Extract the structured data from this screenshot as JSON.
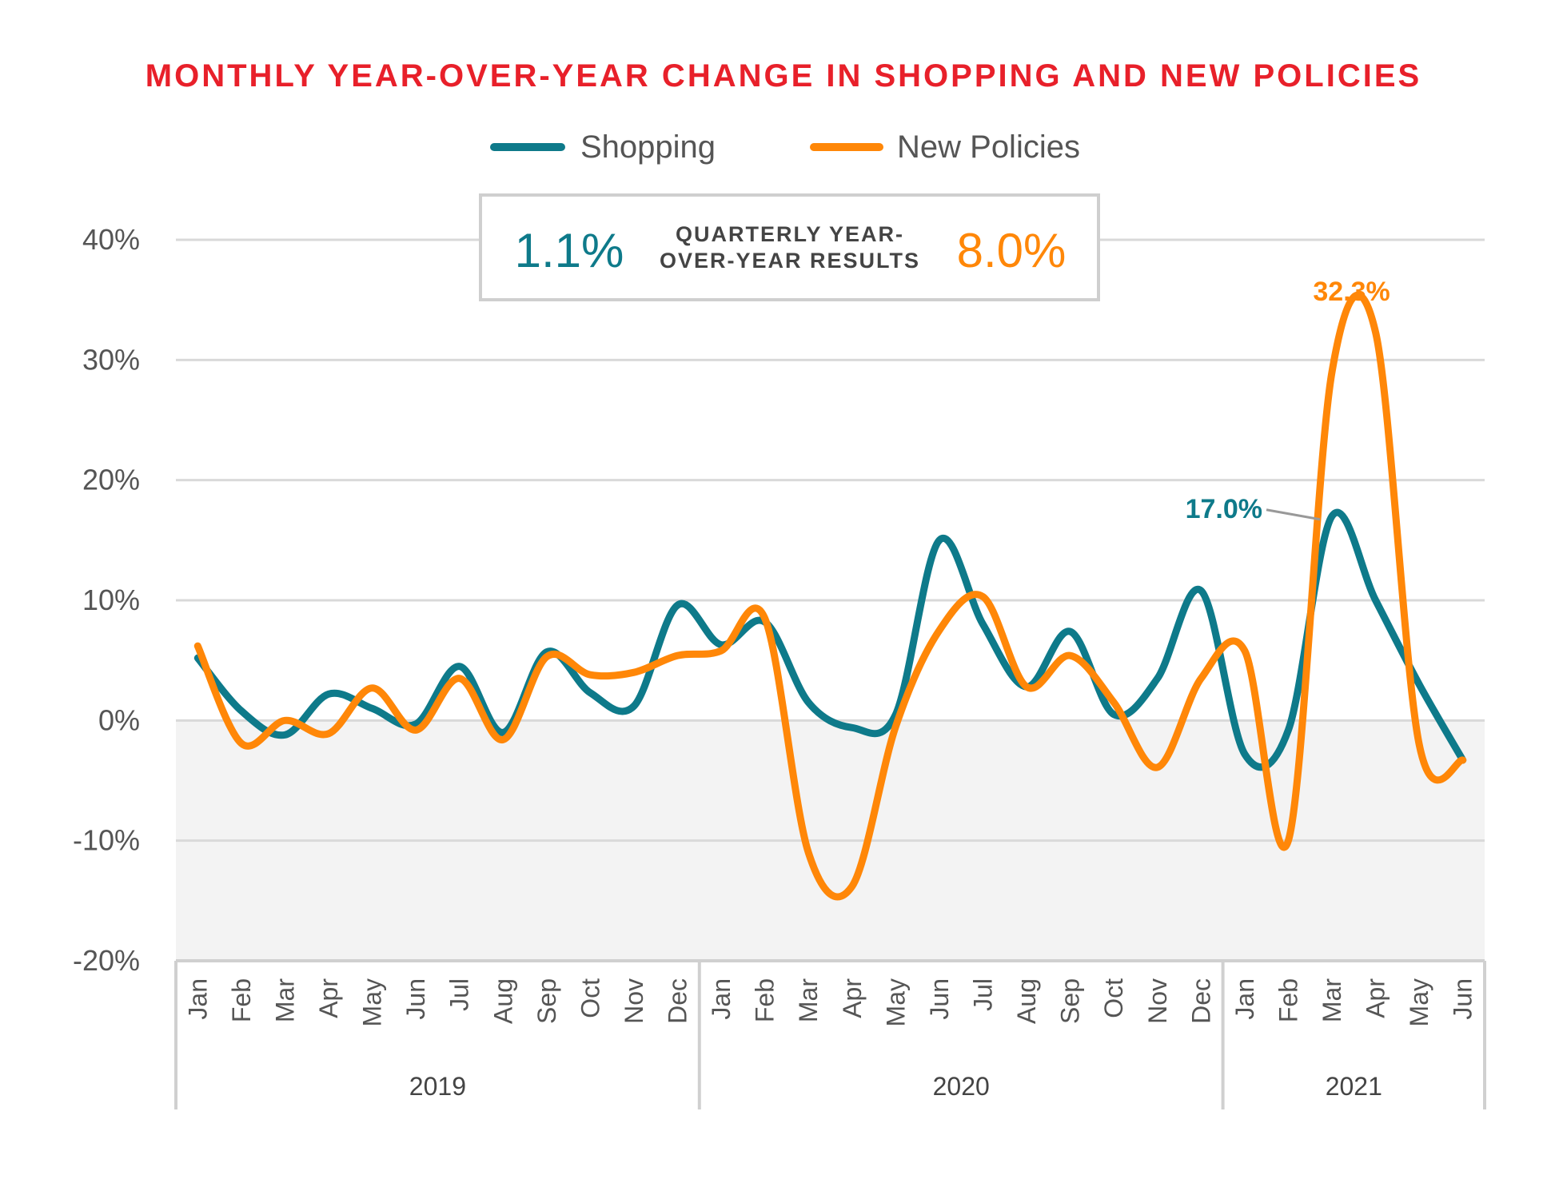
{
  "chart_data": {
    "type": "line",
    "title": "MONTHLY YEAR-OVER-YEAR CHANGE IN SHOPPING AND NEW POLICIES",
    "xlabel": "",
    "ylabel": "",
    "ylim": [
      -20,
      40
    ],
    "yticks": [
      40,
      30,
      20,
      10,
      0,
      -10,
      -20
    ],
    "ytick_labels": [
      "40%",
      "30%",
      "20%",
      "10%",
      "0%",
      "-10%",
      "-20%"
    ],
    "grid": true,
    "legend_position": "top-center",
    "months": [
      "Jan",
      "Feb",
      "Mar",
      "Apr",
      "May",
      "Jun",
      "Jul",
      "Aug",
      "Sep",
      "Oct",
      "Nov",
      "Dec",
      "Jan",
      "Feb",
      "Mar",
      "Apr",
      "May",
      "Jun",
      "Jul",
      "Aug",
      "Sep",
      "Oct",
      "Nov",
      "Dec",
      "Jan",
      "Feb",
      "Mar",
      "Apr",
      "May",
      "Jun"
    ],
    "years": [
      {
        "label": "2019",
        "months": 12
      },
      {
        "label": "2020",
        "months": 12
      },
      {
        "label": "2021",
        "months": 6
      }
    ],
    "series": [
      {
        "name": "Shopping",
        "color": "#0e7a8a",
        "values": [
          5.2,
          0.8,
          -1.2,
          2.2,
          1.0,
          -0.3,
          4.5,
          -1.0,
          5.7,
          2.3,
          1.2,
          9.6,
          6.3,
          8.2,
          1.5,
          -0.6,
          0.5,
          15.0,
          8.0,
          2.8,
          7.4,
          0.5,
          3.5,
          10.8,
          -2.8,
          -0.8,
          17.0,
          10.0,
          3.0,
          -3.3
        ]
      },
      {
        "name": "New Policies",
        "color": "#ff8708",
        "values": [
          6.2,
          -1.9,
          0.0,
          -1.1,
          2.7,
          -0.8,
          3.5,
          -1.6,
          5.3,
          3.8,
          4.0,
          5.4,
          5.8,
          8.5,
          -11.0,
          -13.8,
          -0.5,
          7.5,
          10.3,
          2.8,
          5.4,
          1.5,
          -3.9,
          3.5,
          5.8,
          -10.0,
          29.0,
          32.3,
          -2.0,
          -3.3
        ]
      }
    ],
    "annotations": [
      {
        "text": "32.3%",
        "series": "New Policies",
        "month_index": 27,
        "value": 32.3
      },
      {
        "text": "17.0%",
        "series": "Shopping",
        "month_index": 26,
        "value": 17.0
      }
    ],
    "summary_box": {
      "shopping_value": "1.1%",
      "label_line1": "QUARTERLY YEAR-",
      "label_line2": "OVER-YEAR RESULTS",
      "new_policies_value": "8.0%"
    },
    "negative_region_color": "#f3f3f3"
  }
}
